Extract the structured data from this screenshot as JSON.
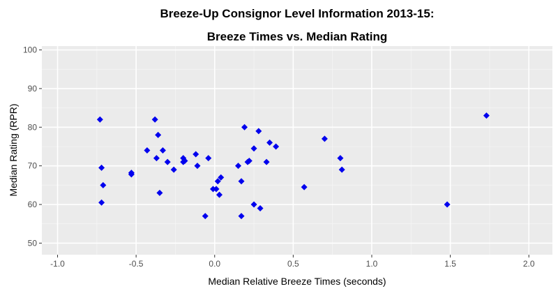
{
  "colors": {
    "panel_background": "#ebebeb",
    "grid_major": "#ffffff",
    "grid_minor": "#f5f5f5",
    "point": "#0000ee",
    "tick_text": "#4d4d4d"
  },
  "chart_data": {
    "type": "scatter",
    "title_line1": "Breeze-Up Consignor Level Information 2013-15:",
    "title_line2": "Breeze Times vs. Median Rating",
    "xlabel": "Median Relative Breeze Times (seconds)",
    "ylabel": "Median Rating (RPR)",
    "xlim": [
      -1.1,
      2.15
    ],
    "ylim": [
      47,
      101
    ],
    "x_ticks": [
      -1.0,
      -0.5,
      0.0,
      0.5,
      1.0,
      1.5,
      2.0
    ],
    "x_tick_labels": [
      "-1.0",
      "-0.5",
      "0.0",
      "0.5",
      "1.0",
      "1.5",
      "2.0"
    ],
    "y_ticks": [
      50,
      60,
      70,
      80,
      90,
      100
    ],
    "y_tick_labels": [
      "50",
      "60",
      "70",
      "80",
      "90",
      "100"
    ],
    "grid": true,
    "marker": "diamond",
    "points": [
      {
        "x": -0.73,
        "y": 82
      },
      {
        "x": -0.72,
        "y": 69.5
      },
      {
        "x": -0.71,
        "y": 65
      },
      {
        "x": -0.72,
        "y": 60.5
      },
      {
        "x": -0.53,
        "y": 68.2
      },
      {
        "x": -0.53,
        "y": 67.8
      },
      {
        "x": -0.43,
        "y": 74
      },
      {
        "x": -0.38,
        "y": 82
      },
      {
        "x": -0.36,
        "y": 78
      },
      {
        "x": -0.37,
        "y": 72
      },
      {
        "x": -0.33,
        "y": 74
      },
      {
        "x": -0.35,
        "y": 63
      },
      {
        "x": -0.3,
        "y": 71
      },
      {
        "x": -0.26,
        "y": 69
      },
      {
        "x": -0.2,
        "y": 72
      },
      {
        "x": -0.2,
        "y": 71
      },
      {
        "x": -0.19,
        "y": 71.3
      },
      {
        "x": -0.12,
        "y": 73
      },
      {
        "x": -0.11,
        "y": 70
      },
      {
        "x": -0.04,
        "y": 72
      },
      {
        "x": -0.06,
        "y": 57
      },
      {
        "x": -0.01,
        "y": 64
      },
      {
        "x": 0.01,
        "y": 64
      },
      {
        "x": 0.02,
        "y": 66
      },
      {
        "x": 0.04,
        "y": 67
      },
      {
        "x": 0.03,
        "y": 62.5
      },
      {
        "x": 0.15,
        "y": 70
      },
      {
        "x": 0.17,
        "y": 66
      },
      {
        "x": 0.17,
        "y": 57
      },
      {
        "x": 0.19,
        "y": 80
      },
      {
        "x": 0.21,
        "y": 71
      },
      {
        "x": 0.22,
        "y": 71.3
      },
      {
        "x": 0.25,
        "y": 74.5
      },
      {
        "x": 0.25,
        "y": 60
      },
      {
        "x": 0.28,
        "y": 79
      },
      {
        "x": 0.29,
        "y": 59
      },
      {
        "x": 0.33,
        "y": 71
      },
      {
        "x": 0.35,
        "y": 76
      },
      {
        "x": 0.39,
        "y": 75
      },
      {
        "x": 0.57,
        "y": 64.5
      },
      {
        "x": 0.7,
        "y": 77
      },
      {
        "x": 0.8,
        "y": 72
      },
      {
        "x": 0.81,
        "y": 69
      },
      {
        "x": 1.48,
        "y": 60
      },
      {
        "x": 1.73,
        "y": 83
      }
    ]
  }
}
